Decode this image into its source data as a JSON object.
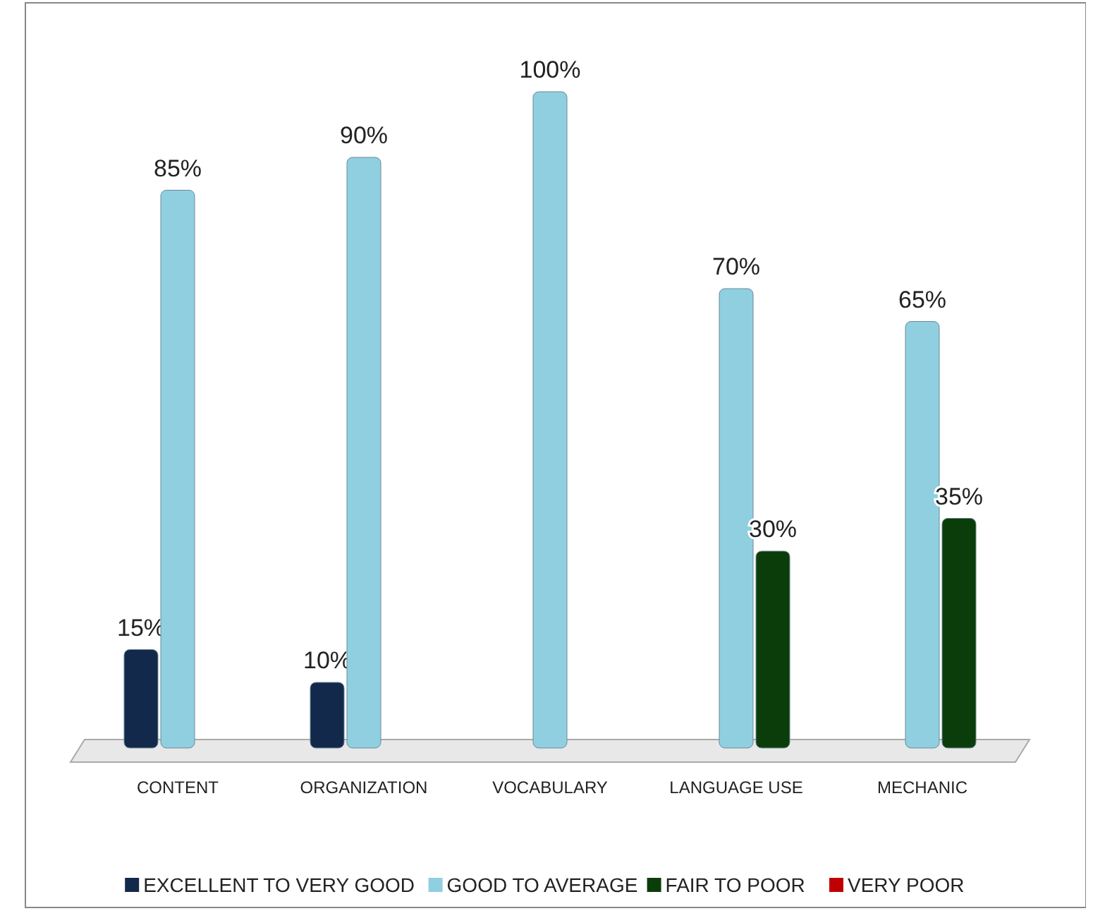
{
  "chart_data": {
    "type": "bar",
    "categories": [
      "CONTENT",
      "ORGANIZATION",
      "VOCABULARY",
      "LANGUAGE USE",
      "MECHANIC"
    ],
    "series": [
      {
        "name": "EXCELLENT TO VERY GOOD",
        "color": "#13294b",
        "values": [
          15,
          10,
          null,
          null,
          null
        ],
        "value_labels": [
          "15%",
          "10%",
          null,
          null,
          null
        ]
      },
      {
        "name": "GOOD TO AVERAGE",
        "color": "#8fcfe0",
        "values": [
          85,
          90,
          100,
          70,
          65
        ],
        "value_labels": [
          "85%",
          "90%",
          "100%",
          "70%",
          "65%"
        ]
      },
      {
        "name": "FAIR TO POOR",
        "color": "#0b3d0b",
        "values": [
          null,
          null,
          null,
          30,
          35
        ],
        "value_labels": [
          null,
          null,
          null,
          "30%",
          "35%"
        ]
      },
      {
        "name": "VERY POOR",
        "color": "#c00000",
        "values": [
          null,
          null,
          null,
          null,
          null
        ]
      }
    ],
    "legend": "bottom"
  }
}
